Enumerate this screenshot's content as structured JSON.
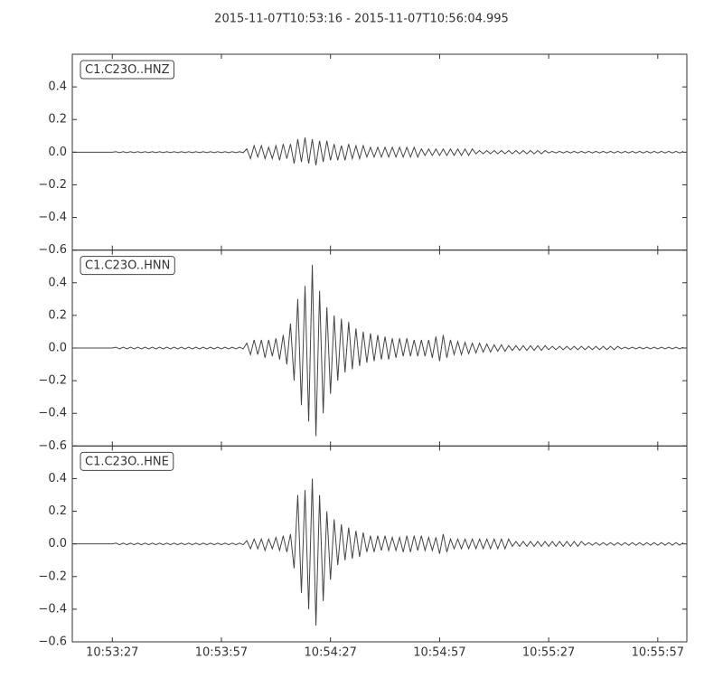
{
  "chart_data": {
    "type": "line",
    "title": "2015-11-07T10:53:16  -  2015-11-07T10:56:04.995",
    "x": [
      0,
      1,
      2,
      3,
      4,
      5,
      6,
      7,
      8,
      9,
      10,
      11,
      12,
      13,
      14,
      15,
      16,
      17,
      18,
      19,
      20,
      21,
      22,
      23,
      24,
      25,
      26,
      27,
      28,
      29,
      30,
      31,
      32,
      33,
      34,
      35,
      36,
      37,
      38,
      39,
      40,
      41,
      42,
      43,
      44,
      45,
      46,
      47,
      48,
      49,
      50,
      51,
      52,
      53,
      54,
      55,
      56,
      57,
      58,
      59,
      60,
      61,
      62,
      63,
      64,
      65,
      66,
      67,
      68,
      69,
      70,
      71,
      72,
      73,
      74,
      75,
      76,
      77,
      78,
      79,
      80,
      81,
      82,
      83,
      84,
      85,
      86,
      87,
      88,
      89,
      90,
      91,
      92,
      93,
      94,
      95,
      96,
      97,
      98,
      99,
      100,
      101,
      102,
      103,
      104,
      105,
      106,
      107,
      108,
      109,
      110,
      111,
      112,
      113,
      114,
      115,
      116,
      117,
      118,
      119,
      120,
      121,
      122,
      123,
      124,
      125,
      126,
      127,
      128,
      129,
      130,
      131,
      132,
      133,
      134,
      135,
      136,
      137,
      138,
      139,
      140,
      141,
      142,
      143,
      144,
      145,
      146,
      147,
      148,
      149,
      150,
      151,
      152,
      153,
      154,
      155,
      156,
      157,
      158,
      159,
      160,
      161,
      162,
      163,
      164,
      165,
      166,
      167,
      168
    ],
    "xlim": [
      0,
      168.995
    ],
    "xticks": [
      {
        "value": 11,
        "label": "10:53:27"
      },
      {
        "value": 41,
        "label": "10:53:57"
      },
      {
        "value": 71,
        "label": "10:54:27"
      },
      {
        "value": 101,
        "label": "10:54:57"
      },
      {
        "value": 131,
        "label": "10:55:27"
      },
      {
        "value": 161,
        "label": "10:55:57"
      }
    ],
    "ylim": [
      -0.6,
      0.6
    ],
    "yticks": [
      {
        "value": -0.6,
        "label": "−0.6"
      },
      {
        "value": -0.4,
        "label": "−0.4"
      },
      {
        "value": -0.2,
        "label": "−0.2"
      },
      {
        "value": 0,
        "label": "0.0"
      },
      {
        "value": 0.2,
        "label": "0.2"
      },
      {
        "value": 0.4,
        "label": "0.4"
      }
    ],
    "series": [
      {
        "name": "C1.C23O..HNZ",
        "color": "#444444",
        "values": [
          0,
          0,
          0,
          0,
          0,
          0,
          0,
          0,
          0,
          0,
          0,
          0,
          0.003,
          -0.003,
          0.003,
          -0.003,
          0.003,
          -0.003,
          0.003,
          -0.003,
          0.003,
          -0.003,
          0.003,
          -0.003,
          0.003,
          -0.003,
          0.003,
          -0.003,
          0.003,
          -0.003,
          0.003,
          -0.003,
          0.003,
          -0.003,
          0.003,
          -0.003,
          0.003,
          -0.003,
          0.003,
          -0.003,
          0.003,
          -0.003,
          0.003,
          -0.003,
          0.003,
          -0.003,
          0.003,
          -0.003,
          0.02,
          -0.04,
          0.04,
          -0.03,
          0.04,
          -0.04,
          0.03,
          -0.04,
          0.04,
          -0.05,
          0.05,
          -0.04,
          0.05,
          -0.07,
          0.08,
          -0.06,
          0.09,
          -0.07,
          0.08,
          -0.08,
          0.07,
          -0.06,
          0.07,
          -0.05,
          0.05,
          -0.05,
          0.04,
          -0.05,
          0.05,
          -0.04,
          0.04,
          -0.04,
          0.04,
          -0.03,
          0.03,
          -0.03,
          0.03,
          -0.03,
          0.03,
          -0.03,
          0.03,
          -0.03,
          0.03,
          -0.03,
          0.03,
          -0.03,
          0.03,
          -0.03,
          0.02,
          -0.02,
          0.02,
          -0.02,
          0.02,
          -0.02,
          0.02,
          -0.02,
          0.02,
          -0.02,
          0.02,
          -0.02,
          0.02,
          -0.02,
          0.02,
          -0.01,
          0.01,
          -0.01,
          0.01,
          -0.01,
          0.01,
          -0.01,
          0.01,
          -0.01,
          0.01,
          -0.01,
          0.01,
          -0.01,
          0.01,
          -0.01,
          0.01,
          -0.01,
          0.01,
          -0.01,
          0.01,
          -0.005,
          0.005,
          -0.005,
          0.005,
          -0.005,
          0.005,
          -0.005,
          0.005,
          -0.005,
          0.005,
          -0.005,
          0.005,
          -0.005,
          0.005,
          -0.005,
          0.005,
          -0.005,
          0.005,
          -0.005,
          0.005,
          -0.005,
          0.005,
          -0.005,
          0.005,
          -0.005,
          0.005,
          -0.005,
          0.005,
          -0.005,
          0.005,
          -0.005,
          0.005,
          -0.005,
          0.005,
          -0.005,
          0.005,
          -0.005,
          0.005
        ]
      },
      {
        "name": "C1.C23O..HNN",
        "color": "#444444",
        "values": [
          0,
          0,
          0,
          0,
          0,
          0,
          0,
          0,
          0,
          0,
          0,
          0,
          0.005,
          -0.005,
          0.005,
          -0.005,
          0.005,
          -0.005,
          0.005,
          -0.005,
          0.005,
          -0.005,
          0.005,
          -0.005,
          0.005,
          -0.005,
          0.005,
          -0.005,
          0.005,
          -0.005,
          0.005,
          -0.005,
          0.005,
          -0.005,
          0.005,
          -0.005,
          0.005,
          -0.005,
          0.005,
          -0.005,
          0.005,
          -0.005,
          0.005,
          -0.005,
          0.005,
          -0.005,
          0.005,
          -0.005,
          0.03,
          -0.04,
          0.05,
          -0.04,
          0.05,
          -0.06,
          0.05,
          -0.05,
          0.06,
          -0.07,
          0.08,
          -0.1,
          0.15,
          -0.2,
          0.3,
          -0.35,
          0.38,
          -0.45,
          0.51,
          -0.54,
          0.35,
          -0.4,
          0.25,
          -0.28,
          0.2,
          -0.2,
          0.18,
          -0.15,
          0.16,
          -0.13,
          0.12,
          -0.11,
          0.1,
          -0.09,
          0.09,
          -0.08,
          0.08,
          -0.07,
          0.07,
          -0.07,
          0.06,
          -0.06,
          0.06,
          -0.05,
          0.06,
          -0.05,
          0.05,
          -0.05,
          0.05,
          -0.05,
          0.05,
          -0.06,
          0.07,
          -0.08,
          0.08,
          -0.06,
          0.05,
          -0.04,
          0.04,
          -0.04,
          0.035,
          -0.035,
          0.03,
          -0.03,
          0.03,
          -0.025,
          0.025,
          -0.025,
          0.02,
          -0.02,
          0.02,
          -0.02,
          0.015,
          -0.015,
          0.015,
          -0.015,
          0.015,
          -0.015,
          0.015,
          -0.015,
          0.015,
          -0.015,
          0.015,
          -0.01,
          0.01,
          -0.01,
          0.01,
          -0.01,
          0.01,
          -0.01,
          0.01,
          -0.01,
          0.01,
          -0.01,
          0.01,
          -0.01,
          0.01,
          -0.01,
          0.01,
          -0.01,
          0.01,
          -0.01,
          0.01,
          -0.005,
          0.005,
          -0.005,
          0.005,
          -0.005,
          0.005,
          -0.005,
          0.005,
          -0.005,
          0.005,
          -0.005,
          0.005,
          -0.005,
          0.005,
          -0.005,
          0.005,
          -0.005,
          0.005
        ]
      },
      {
        "name": "C1.C23O..HNE",
        "color": "#444444",
        "values": [
          0,
          0,
          0,
          0,
          0,
          0,
          0,
          0,
          0,
          0,
          0,
          0,
          0.005,
          -0.005,
          0.005,
          -0.005,
          0.005,
          -0.005,
          0.005,
          -0.005,
          0.005,
          -0.005,
          0.005,
          -0.005,
          0.005,
          -0.005,
          0.005,
          -0.005,
          0.005,
          -0.005,
          0.005,
          -0.005,
          0.005,
          -0.005,
          0.005,
          -0.005,
          0.005,
          -0.005,
          0.005,
          -0.005,
          0.005,
          -0.005,
          0.005,
          -0.005,
          0.005,
          -0.005,
          0.005,
          -0.005,
          0.02,
          -0.03,
          0.03,
          -0.03,
          0.03,
          -0.04,
          0.03,
          -0.03,
          0.04,
          -0.04,
          0.05,
          -0.05,
          0.06,
          -0.15,
          0.3,
          -0.3,
          0.33,
          -0.4,
          0.4,
          -0.5,
          0.3,
          -0.35,
          0.2,
          -0.22,
          0.15,
          -0.13,
          0.12,
          -0.1,
          0.1,
          -0.09,
          0.08,
          -0.08,
          0.07,
          -0.05,
          0.05,
          -0.05,
          0.05,
          -0.04,
          0.05,
          -0.04,
          0.04,
          -0.04,
          0.04,
          -0.05,
          0.05,
          -0.05,
          0.05,
          -0.04,
          0.05,
          -0.04,
          0.04,
          -0.04,
          0.04,
          -0.06,
          0.06,
          -0.05,
          0.03,
          -0.03,
          0.03,
          -0.03,
          0.03,
          -0.03,
          0.03,
          -0.03,
          0.03,
          -0.03,
          0.03,
          -0.03,
          0.03,
          -0.03,
          0.03,
          -0.03,
          0.03,
          -0.015,
          0.015,
          -0.015,
          0.015,
          -0.015,
          0.015,
          -0.015,
          0.015,
          -0.015,
          0.015,
          -0.015,
          0.015,
          -0.015,
          0.015,
          -0.015,
          0.015,
          -0.015,
          0.015,
          -0.015,
          0.015,
          -0.008,
          0.008,
          -0.008,
          0.008,
          -0.008,
          0.008,
          -0.008,
          0.008,
          -0.008,
          0.008,
          -0.008,
          0.008,
          -0.008,
          0.008,
          -0.008,
          0.008,
          -0.008,
          0.008,
          -0.008,
          0.008,
          -0.008,
          0.008,
          -0.008,
          0.008,
          -0.008,
          0.008,
          -0.008,
          0.008
        ]
      }
    ]
  }
}
